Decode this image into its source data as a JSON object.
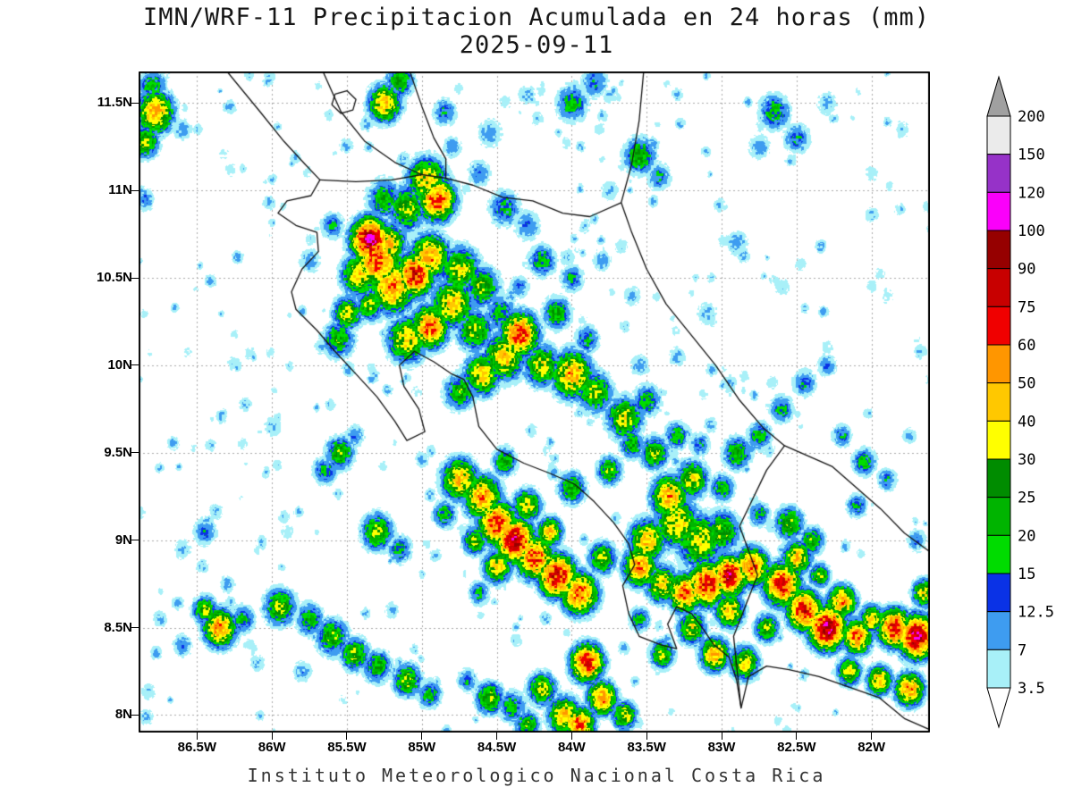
{
  "title": "IMN/WRF-11 Precipitacion Acumulada en 24 horas (mm)",
  "subtitle": "2025-09-11",
  "footer": "Instituto Meteorologico Nacional Costa Rica",
  "axes": {
    "lat_ticks": [
      "11.5N",
      "11N",
      "10.5N",
      "10N",
      "9.5N",
      "9N",
      "8.5N",
      "8N"
    ],
    "lon_ticks": [
      "86.5W",
      "86W",
      "85.5W",
      "85W",
      "84.5W",
      "84W",
      "83.5W",
      "83W",
      "82.5W",
      "82W"
    ]
  },
  "chart_data": {
    "type": "heatmap",
    "title": "IMN/WRF-11 Precipitacion Acumulada en 24 horas (mm)",
    "date": "2025-09-11",
    "units": "mm",
    "extent": {
      "lon_min": -86.89,
      "lon_max": -81.61,
      "lat_min": 7.9,
      "lat_max": 11.68
    },
    "levels": [
      3.5,
      7,
      12.5,
      15,
      20,
      25,
      30,
      40,
      50,
      60,
      75,
      90,
      100,
      120,
      150,
      200
    ],
    "colors": [
      "#a8f0f8",
      "#3e9cf0",
      "#0a32e6",
      "#00dc00",
      "#00b400",
      "#008c00",
      "#ffff00",
      "#ffc800",
      "#ff9600",
      "#f00000",
      "#c80000",
      "#960000",
      "#fa00fa",
      "#9632c8",
      "#ebebeb"
    ],
    "under_color": "#ffffff",
    "over_color": "#a0a0a0",
    "colorbar_labels": [
      "200",
      "150",
      "120",
      "100",
      "90",
      "75",
      "60",
      "50",
      "40",
      "30",
      "25",
      "20",
      "15",
      "12.5",
      "7",
      "3.5"
    ],
    "grid": {
      "step_deg": 0.5,
      "style": "dotted"
    },
    "speckle": {
      "count": 380,
      "seed": 7,
      "vmin": 4,
      "vmax": 9,
      "rmin": 0.02,
      "rmax": 0.05
    },
    "cells": [
      [
        -85.35,
        10.72,
        0.1,
        95
      ],
      [
        -85.3,
        10.6,
        0.13,
        60
      ],
      [
        -85.42,
        10.52,
        0.1,
        40
      ],
      [
        -85.2,
        10.45,
        0.12,
        55
      ],
      [
        -85.05,
        10.52,
        0.1,
        75
      ],
      [
        -84.95,
        10.62,
        0.11,
        50
      ],
      [
        -84.9,
        10.95,
        0.1,
        65
      ],
      [
        -84.97,
        11.06,
        0.11,
        40
      ],
      [
        -85.1,
        10.9,
        0.11,
        30
      ],
      [
        -85.25,
        10.95,
        0.1,
        22
      ],
      [
        -84.75,
        10.55,
        0.11,
        35
      ],
      [
        -84.6,
        10.45,
        0.1,
        28
      ],
      [
        -84.8,
        10.35,
        0.11,
        45
      ],
      [
        -84.95,
        10.22,
        0.1,
        60
      ],
      [
        -85.1,
        10.15,
        0.11,
        40
      ],
      [
        -84.65,
        10.2,
        0.1,
        30
      ],
      [
        -84.48,
        10.3,
        0.09,
        20
      ],
      [
        -85.5,
        10.3,
        0.08,
        35
      ],
      [
        -85.56,
        10.15,
        0.09,
        25
      ],
      [
        -84.45,
        10.9,
        0.09,
        18
      ],
      [
        -84.3,
        10.8,
        0.08,
        12
      ],
      [
        -85.6,
        10.8,
        0.07,
        15
      ],
      [
        -85.75,
        10.6,
        0.07,
        10
      ],
      [
        -85.35,
        10.35,
        0.08,
        30
      ],
      [
        -85.22,
        10.7,
        0.09,
        45
      ],
      [
        -86.78,
        11.45,
        0.1,
        50
      ],
      [
        -86.85,
        11.28,
        0.08,
        30
      ],
      [
        -86.8,
        11.6,
        0.08,
        20
      ],
      [
        -86.6,
        11.35,
        0.06,
        10
      ],
      [
        -86.85,
        10.95,
        0.06,
        12
      ],
      [
        -85.25,
        11.5,
        0.09,
        45
      ],
      [
        -85.15,
        11.63,
        0.08,
        25
      ],
      [
        -84.85,
        11.45,
        0.07,
        15
      ],
      [
        -84.55,
        11.33,
        0.08,
        10
      ],
      [
        -84.0,
        11.5,
        0.09,
        20
      ],
      [
        -83.85,
        11.62,
        0.08,
        14
      ],
      [
        -83.55,
        11.2,
        0.09,
        25
      ],
      [
        -83.42,
        11.08,
        0.07,
        15
      ],
      [
        -83.75,
        11.0,
        0.06,
        8
      ],
      [
        -84.62,
        11.1,
        0.07,
        12
      ],
      [
        -84.8,
        11.25,
        0.06,
        10
      ],
      [
        -84.3,
        11.55,
        0.06,
        8
      ],
      [
        -82.65,
        11.45,
        0.09,
        20
      ],
      [
        -82.5,
        11.3,
        0.08,
        14
      ],
      [
        -82.75,
        11.25,
        0.07,
        10
      ],
      [
        -82.3,
        11.5,
        0.07,
        8
      ],
      [
        -82.0,
        11.1,
        0.06,
        5
      ],
      [
        -81.8,
        11.35,
        0.06,
        6
      ],
      [
        -82.9,
        10.7,
        0.07,
        10
      ],
      [
        -82.6,
        10.45,
        0.06,
        6
      ],
      [
        -83.1,
        10.3,
        0.07,
        8
      ],
      [
        -82.3,
        10.1,
        0.06,
        5
      ],
      [
        -81.9,
        10.4,
        0.06,
        5
      ],
      [
        -81.7,
        10.15,
        0.05,
        4
      ],
      [
        -84.35,
        10.18,
        0.1,
        70
      ],
      [
        -84.45,
        10.05,
        0.11,
        45
      ],
      [
        -84.2,
        10.0,
        0.1,
        35
      ],
      [
        -84.0,
        9.95,
        0.11,
        50
      ],
      [
        -83.85,
        9.85,
        0.1,
        30
      ],
      [
        -84.6,
        9.95,
        0.1,
        40
      ],
      [
        -84.75,
        9.85,
        0.09,
        25
      ],
      [
        -83.65,
        9.7,
        0.1,
        35
      ],
      [
        -83.5,
        9.8,
        0.08,
        20
      ],
      [
        -84.1,
        10.3,
        0.08,
        25
      ],
      [
        -83.9,
        10.15,
        0.07,
        18
      ],
      [
        -84.2,
        10.6,
        0.08,
        20
      ],
      [
        -84.0,
        10.5,
        0.07,
        15
      ],
      [
        -83.8,
        10.6,
        0.06,
        10
      ],
      [
        -84.35,
        10.45,
        0.06,
        12
      ],
      [
        -83.6,
        10.4,
        0.06,
        8
      ],
      [
        -85.3,
        9.05,
        0.09,
        30
      ],
      [
        -85.15,
        8.95,
        0.07,
        18
      ],
      [
        -85.55,
        9.5,
        0.08,
        28
      ],
      [
        -85.65,
        9.4,
        0.07,
        18
      ],
      [
        -85.45,
        9.6,
        0.06,
        12
      ],
      [
        -86.0,
        9.65,
        0.06,
        8
      ],
      [
        -86.45,
        9.05,
        0.07,
        14
      ],
      [
        -86.6,
        8.95,
        0.06,
        8
      ],
      [
        -86.2,
        9.55,
        0.05,
        5
      ],
      [
        -85.9,
        9.05,
        0.05,
        6
      ],
      [
        -84.75,
        9.35,
        0.1,
        45
      ],
      [
        -84.6,
        9.25,
        0.1,
        55
      ],
      [
        -84.5,
        9.1,
        0.1,
        70
      ],
      [
        -84.38,
        9.0,
        0.1,
        85
      ],
      [
        -84.25,
        8.9,
        0.1,
        65
      ],
      [
        -84.1,
        8.8,
        0.1,
        80
      ],
      [
        -83.95,
        8.7,
        0.1,
        60
      ],
      [
        -84.5,
        8.85,
        0.08,
        40
      ],
      [
        -84.65,
        9.0,
        0.07,
        30
      ],
      [
        -84.3,
        9.2,
        0.08,
        35
      ],
      [
        -84.15,
        9.05,
        0.07,
        45
      ],
      [
        -84.0,
        9.3,
        0.08,
        25
      ],
      [
        -83.8,
        8.9,
        0.08,
        30
      ],
      [
        -84.45,
        9.45,
        0.07,
        25
      ],
      [
        -84.85,
        9.15,
        0.07,
        20
      ],
      [
        -84.62,
        8.7,
        0.06,
        18
      ],
      [
        -84.55,
        8.1,
        0.08,
        30
      ],
      [
        -84.4,
        8.05,
        0.08,
        20
      ],
      [
        -84.2,
        8.15,
        0.08,
        35
      ],
      [
        -84.05,
        8.0,
        0.09,
        45
      ],
      [
        -83.9,
        8.3,
        0.09,
        70
      ],
      [
        -83.8,
        8.1,
        0.08,
        55
      ],
      [
        -83.95,
        7.95,
        0.08,
        60
      ],
      [
        -84.3,
        7.95,
        0.07,
        25
      ],
      [
        -84.7,
        8.2,
        0.06,
        15
      ],
      [
        -83.65,
        8.0,
        0.07,
        35
      ],
      [
        -86.35,
        8.5,
        0.09,
        55
      ],
      [
        -86.45,
        8.6,
        0.07,
        30
      ],
      [
        -86.2,
        8.55,
        0.07,
        20
      ],
      [
        -85.95,
        8.62,
        0.09,
        30
      ],
      [
        -85.75,
        8.55,
        0.08,
        22
      ],
      [
        -85.6,
        8.45,
        0.09,
        28
      ],
      [
        -85.45,
        8.35,
        0.08,
        30
      ],
      [
        -85.3,
        8.28,
        0.08,
        25
      ],
      [
        -85.1,
        8.2,
        0.08,
        30
      ],
      [
        -84.95,
        8.12,
        0.07,
        20
      ],
      [
        -85.8,
        8.25,
        0.06,
        10
      ],
      [
        -86.1,
        8.3,
        0.05,
        8
      ],
      [
        -86.6,
        8.4,
        0.06,
        12
      ],
      [
        -86.75,
        8.55,
        0.05,
        8
      ],
      [
        -86.3,
        8.75,
        0.05,
        10
      ],
      [
        -85.2,
        8.6,
        0.05,
        8
      ],
      [
        -83.3,
        9.1,
        0.12,
        40
      ],
      [
        -83.15,
        9.0,
        0.13,
        35
      ],
      [
        -83.0,
        9.05,
        0.1,
        30
      ],
      [
        -83.35,
        9.25,
        0.1,
        50
      ],
      [
        -83.2,
        9.35,
        0.09,
        35
      ],
      [
        -83.5,
        9.0,
        0.1,
        45
      ],
      [
        -83.55,
        8.85,
        0.09,
        55
      ],
      [
        -83.4,
        8.75,
        0.09,
        40
      ],
      [
        -83.25,
        8.7,
        0.09,
        60
      ],
      [
        -83.1,
        8.75,
        0.1,
        75
      ],
      [
        -82.95,
        8.8,
        0.09,
        85
      ],
      [
        -82.8,
        8.85,
        0.09,
        60
      ],
      [
        -82.95,
        8.6,
        0.08,
        45
      ],
      [
        -83.2,
        8.5,
        0.08,
        35
      ],
      [
        -83.05,
        8.35,
        0.08,
        50
      ],
      [
        -82.85,
        8.3,
        0.08,
        40
      ],
      [
        -82.6,
        8.75,
        0.1,
        70
      ],
      [
        -82.5,
        8.9,
        0.08,
        45
      ],
      [
        -82.45,
        8.6,
        0.09,
        80
      ],
      [
        -82.3,
        8.5,
        0.1,
        90
      ],
      [
        -82.2,
        8.65,
        0.08,
        50
      ],
      [
        -82.1,
        8.45,
        0.08,
        60
      ],
      [
        -82.0,
        8.55,
        0.07,
        40
      ],
      [
        -81.85,
        8.5,
        0.09,
        75
      ],
      [
        -81.7,
        8.45,
        0.1,
        90
      ],
      [
        -81.65,
        8.7,
        0.07,
        35
      ],
      [
        -82.7,
        8.5,
        0.07,
        30
      ],
      [
        -82.15,
        8.25,
        0.07,
        35
      ],
      [
        -81.95,
        8.2,
        0.07,
        45
      ],
      [
        -81.75,
        8.15,
        0.08,
        55
      ],
      [
        -82.55,
        9.1,
        0.08,
        30
      ],
      [
        -82.4,
        9.0,
        0.07,
        25
      ],
      [
        -82.75,
        9.15,
        0.06,
        20
      ],
      [
        -82.35,
        8.8,
        0.06,
        30
      ],
      [
        -83.4,
        8.35,
        0.07,
        30
      ],
      [
        -83.55,
        8.55,
        0.06,
        20
      ],
      [
        -82.9,
        9.5,
        0.08,
        25
      ],
      [
        -82.75,
        9.6,
        0.07,
        20
      ],
      [
        -82.6,
        9.75,
        0.07,
        18
      ],
      [
        -82.45,
        9.9,
        0.07,
        15
      ],
      [
        -82.3,
        10.0,
        0.06,
        12
      ],
      [
        -82.2,
        9.6,
        0.06,
        15
      ],
      [
        -82.05,
        9.45,
        0.07,
        20
      ],
      [
        -81.9,
        9.35,
        0.06,
        14
      ],
      [
        -82.1,
        9.2,
        0.06,
        18
      ],
      [
        -81.75,
        9.6,
        0.05,
        8
      ],
      [
        -81.7,
        9.0,
        0.06,
        12
      ],
      [
        -83.45,
        9.5,
        0.08,
        30
      ],
      [
        -83.3,
        9.6,
        0.07,
        20
      ],
      [
        -83.6,
        9.55,
        0.07,
        25
      ],
      [
        -83.15,
        9.55,
        0.06,
        15
      ],
      [
        -83.0,
        9.3,
        0.07,
        22
      ],
      [
        -83.75,
        9.4,
        0.07,
        28
      ],
      [
        -83.55,
        10.0,
        0.06,
        10
      ],
      [
        -83.3,
        10.05,
        0.06,
        8
      ],
      [
        -82.95,
        9.9,
        0.05,
        8
      ]
    ]
  }
}
